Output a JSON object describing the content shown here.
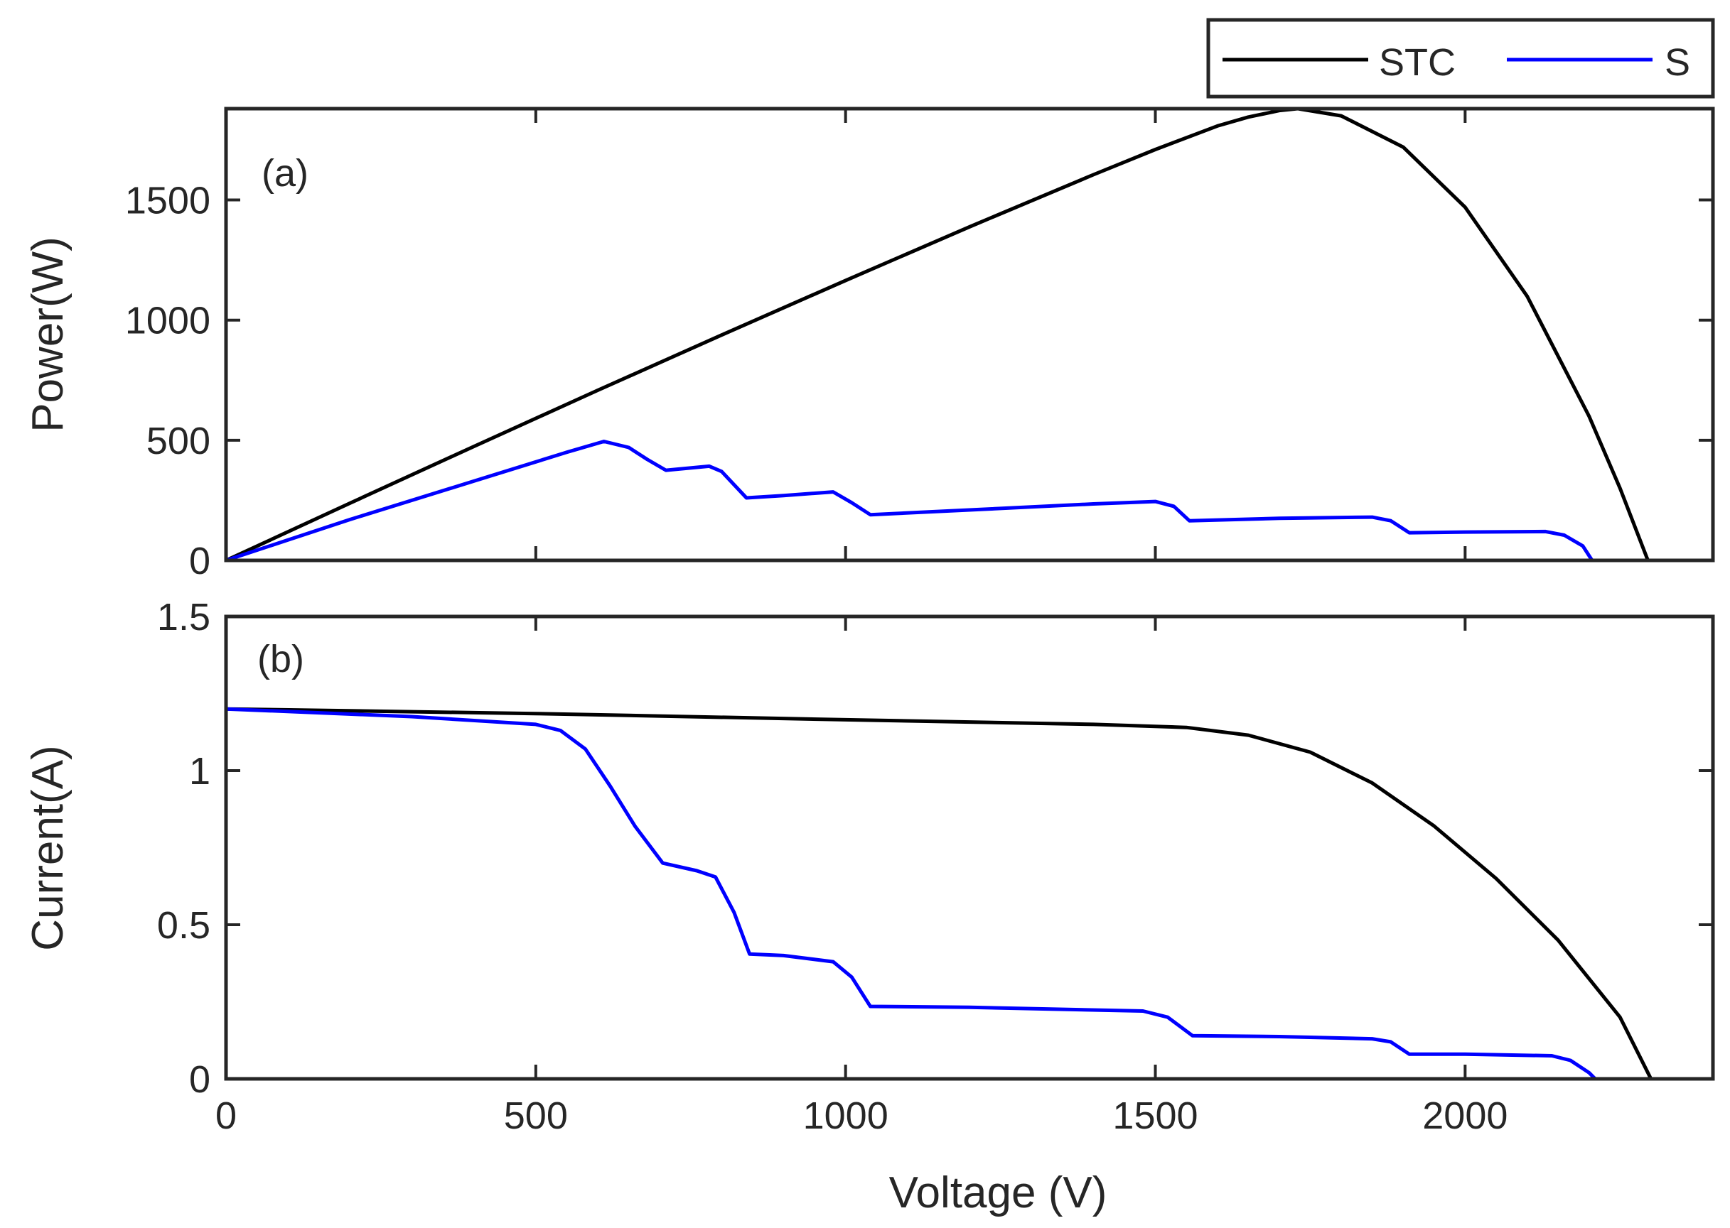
{
  "chart_data": [
    {
      "type": "line",
      "panel_label": "(a)",
      "xlabel": "",
      "ylabel": "Power(W)",
      "xlim": [
        0,
        2400
      ],
      "ylim": [
        0,
        1880
      ],
      "yticks": [
        0,
        500,
        1000,
        1500
      ],
      "ytick_labels": [
        "0",
        "500",
        "1000",
        "1500"
      ],
      "series": [
        {
          "name": "STC",
          "color": "#000000",
          "x": [
            0,
            200,
            400,
            600,
            800,
            1000,
            1200,
            1400,
            1500,
            1600,
            1650,
            1700,
            1730,
            1800,
            1900,
            2000,
            2100,
            2200,
            2250,
            2295
          ],
          "y": [
            0,
            238,
            474,
            708,
            938,
            1165,
            1388,
            1605,
            1710,
            1808,
            1845,
            1872,
            1880,
            1850,
            1720,
            1470,
            1100,
            600,
            300,
            0
          ]
        },
        {
          "name": "S",
          "color": "#0000ff",
          "x": [
            0,
            200,
            400,
            550,
            610,
            650,
            680,
            710,
            780,
            800,
            840,
            900,
            980,
            1010,
            1040,
            1200,
            1400,
            1500,
            1530,
            1555,
            1700,
            1850,
            1880,
            1910,
            2000,
            2130,
            2160,
            2190,
            2205
          ],
          "y": [
            0,
            170,
            330,
            450,
            495,
            470,
            420,
            375,
            392,
            370,
            260,
            270,
            285,
            240,
            190,
            210,
            235,
            245,
            225,
            165,
            175,
            180,
            165,
            115,
            118,
            120,
            105,
            60,
            0
          ]
        }
      ]
    },
    {
      "type": "line",
      "panel_label": "(b)",
      "xlabel": "Voltage (V)",
      "ylabel": "Current(A)",
      "xlim": [
        0,
        2400
      ],
      "ylim": [
        0,
        1.5
      ],
      "xticks": [
        0,
        500,
        1000,
        1500,
        2000
      ],
      "xtick_labels": [
        "0",
        "500",
        "1000",
        "1500",
        "2000"
      ],
      "yticks": [
        0,
        0.5,
        1,
        1.5
      ],
      "ytick_labels": [
        "0",
        "0.5",
        "1",
        "1.5"
      ],
      "series": [
        {
          "name": "STC",
          "color": "#000000",
          "x": [
            0,
            500,
            1000,
            1400,
            1550,
            1650,
            1750,
            1850,
            1950,
            2050,
            2150,
            2250,
            2300
          ],
          "y": [
            1.2,
            1.185,
            1.165,
            1.15,
            1.14,
            1.115,
            1.06,
            0.96,
            0.82,
            0.65,
            0.45,
            0.2,
            0.0
          ]
        },
        {
          "name": "S",
          "color": "#0000ff",
          "x": [
            0,
            300,
            500,
            540,
            580,
            620,
            660,
            705,
            760,
            790,
            820,
            845,
            900,
            980,
            1010,
            1040,
            1200,
            1480,
            1520,
            1560,
            1700,
            1850,
            1880,
            1910,
            2000,
            2140,
            2170,
            2200,
            2210
          ],
          "y": [
            1.2,
            1.175,
            1.15,
            1.13,
            1.07,
            0.95,
            0.82,
            0.7,
            0.675,
            0.655,
            0.54,
            0.405,
            0.4,
            0.38,
            0.33,
            0.235,
            0.232,
            0.22,
            0.2,
            0.14,
            0.137,
            0.13,
            0.12,
            0.08,
            0.08,
            0.075,
            0.06,
            0.02,
            0.0
          ]
        }
      ]
    }
  ],
  "legend": {
    "position": "top-right, outside axes",
    "items": [
      {
        "label": "STC",
        "color": "#000000"
      },
      {
        "label": "S",
        "color": "#0000ff"
      }
    ]
  }
}
